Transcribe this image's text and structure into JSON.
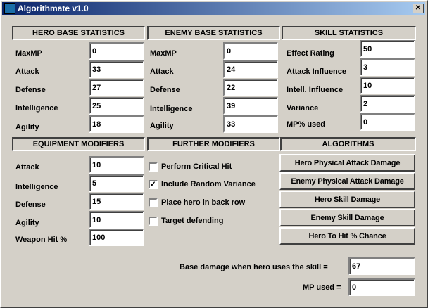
{
  "window": {
    "title": "Algorithmate v1.0",
    "close_label": "✕"
  },
  "hero": {
    "header": "HERO BASE STATISTICS",
    "fields": [
      {
        "label": "MaxMP",
        "value": "0"
      },
      {
        "label": "Attack",
        "value": "33"
      },
      {
        "label": "Defense",
        "value": "27"
      },
      {
        "label": "Intelligence",
        "value": "25"
      },
      {
        "label": "Agility",
        "value": "18"
      }
    ]
  },
  "enemy": {
    "header": "ENEMY BASE STATISTICS",
    "fields": [
      {
        "label": "MaxMP",
        "value": "0"
      },
      {
        "label": "Attack",
        "value": "24"
      },
      {
        "label": "Defense",
        "value": "22"
      },
      {
        "label": "Intelligence",
        "value": "39"
      },
      {
        "label": "Agility",
        "value": "33"
      }
    ]
  },
  "skill": {
    "header": "SKILL STATISTICS",
    "fields": [
      {
        "label": "Effect Rating",
        "value": "50"
      },
      {
        "label": "Attack Influence",
        "value": "3"
      },
      {
        "label": "Intell. Influence",
        "value": "10"
      },
      {
        "label": "Variance",
        "value": "2"
      },
      {
        "label": "MP% used",
        "value": "0"
      }
    ]
  },
  "equipment": {
    "header": "EQUIPMENT MODIFIERS",
    "fields": [
      {
        "label": "Attack",
        "value": "10"
      },
      {
        "label": "Intelligence",
        "value": "5"
      },
      {
        "label": "Defense",
        "value": "15"
      },
      {
        "label": "Agility",
        "value": "10"
      },
      {
        "label": "Weapon Hit %",
        "value": "100"
      }
    ]
  },
  "further": {
    "header": "FURTHER MODIFIERS",
    "options": [
      {
        "label": "Perform Critical Hit",
        "checked": false,
        "mark": ""
      },
      {
        "label": "Include Random Variance",
        "checked": true,
        "mark": "✓"
      },
      {
        "label": "Place hero in back row",
        "checked": false,
        "mark": ""
      },
      {
        "label": "Target defending",
        "checked": false,
        "mark": ""
      }
    ]
  },
  "algorithms": {
    "header": "ALGORITHMS",
    "buttons": [
      "Hero Physical Attack Damage",
      "Enemy Physical Attack Damage",
      "Hero Skill Damage",
      "Enemy Skill Damage",
      "Hero To Hit % Chance"
    ]
  },
  "results": {
    "base_damage_label": "Base damage when hero uses the skill =",
    "base_damage_value": "67",
    "mp_used_label": "MP used =",
    "mp_used_value": "0"
  }
}
